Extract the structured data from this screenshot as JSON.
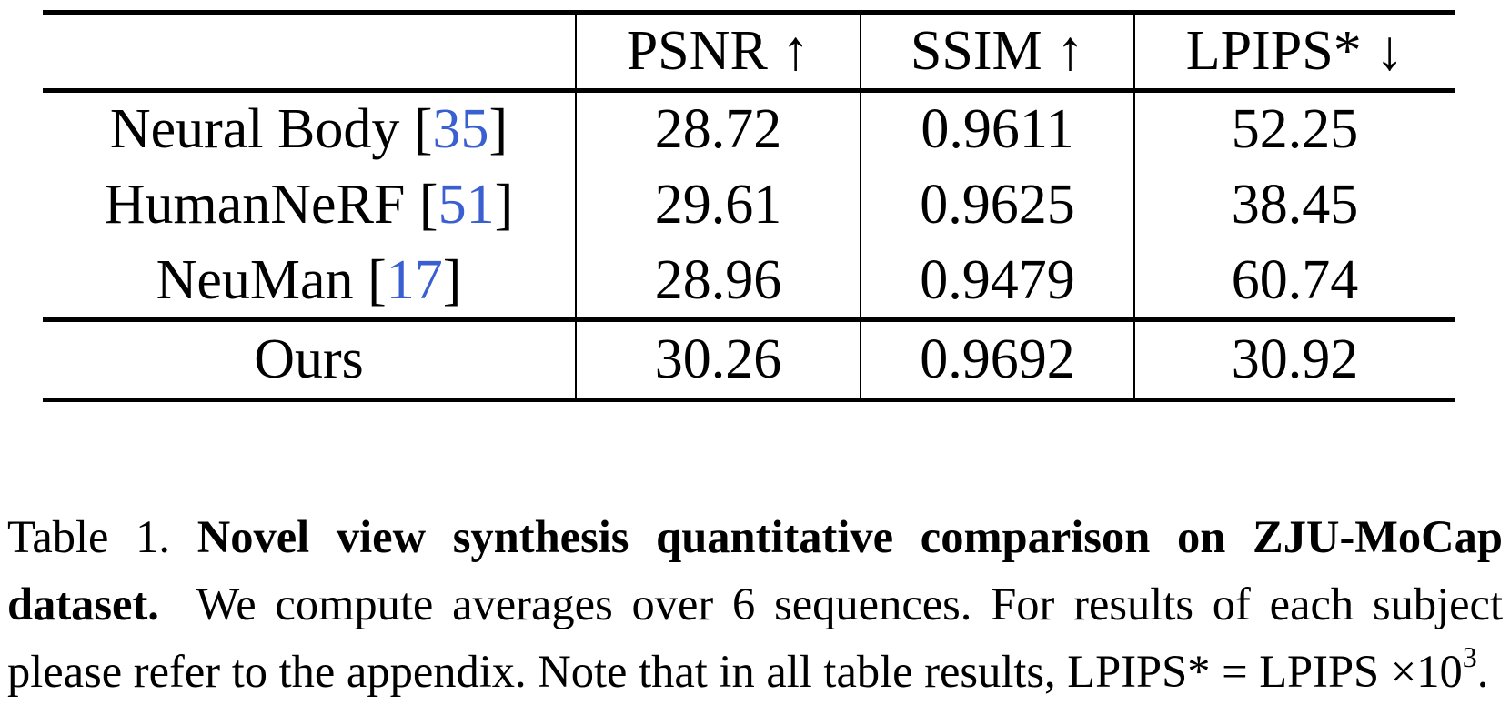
{
  "table": {
    "header": [
      "PSNR ↑",
      "SSIM ↑",
      "LPIPS* ↓"
    ],
    "rows": [
      {
        "name": "Neural Body",
        "cite": "[35]",
        "values": [
          "28.72",
          "0.9611",
          "52.25"
        ]
      },
      {
        "name": "HumanNeRF",
        "cite": "[51]",
        "values": [
          "29.61",
          "0.9625",
          "38.45"
        ]
      },
      {
        "name": "NeuMan",
        "cite": "[17]",
        "values": [
          "28.96",
          "0.9479",
          "60.74"
        ]
      },
      {
        "name": "Ours",
        "values": [
          "30.26",
          "0.9692",
          "30.92"
        ],
        "bold": true
      }
    ]
  },
  "caption": {
    "label": "Table 1.",
    "title": "Novel view synthesis quantitative comparison on ZJU-MoCap dataset.",
    "text": "We compute averages over 6 sequences. For results of each subject please refer to the appendix. Note that in all table results, LPIPS* = LPIPS ×10",
    "sup": "3",
    "end": "."
  }
}
